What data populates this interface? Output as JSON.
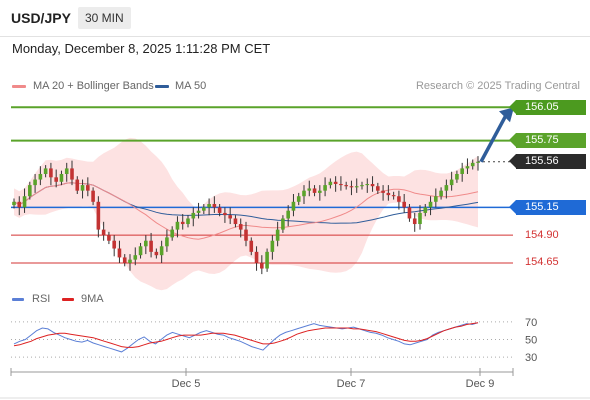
{
  "header": {
    "symbol": "USD/JPY",
    "timeframe": "30 MIN"
  },
  "datetime": "Monday, December 8, 2025 1:11:28 PM CET",
  "legend": {
    "ma20": {
      "label": "MA 20 + Bollinger Bands",
      "color": "#f08a8a"
    },
    "ma50": {
      "label": "MA 50",
      "color": "#2f5d9a"
    }
  },
  "research_note": "Research © 2025 Trading Central",
  "rsi_legend": {
    "rsi": {
      "label": "RSI",
      "color": "#5b7fd6"
    },
    "ma9": {
      "label": "9MA",
      "color": "#dd2222"
    }
  },
  "colors": {
    "green": "#5aa32a",
    "blue": "#1f6ad6",
    "red": "#d33333",
    "current_bg": "#2b2b2b",
    "target_bg": "#4c9a1f",
    "arrow": "#2f5d9a",
    "candle_up": "#5aa32a",
    "candle_down": "#c33333",
    "band_fill": "#fde2e2"
  },
  "chart_data": [
    {
      "type": "candlestick",
      "ylim": [
        154.47,
        156.16
      ],
      "x_ticks": [
        "Dec 5",
        "Dec 7",
        "Dec 9"
      ],
      "levels": [
        {
          "value": 156.05,
          "label": "156.05",
          "kind": "target"
        },
        {
          "value": 155.75,
          "label": "155.75",
          "kind": "resistance"
        },
        {
          "value": 155.56,
          "label": "155.56",
          "kind": "current"
        },
        {
          "value": 155.15,
          "label": "155.15",
          "kind": "pivot"
        },
        {
          "value": 154.9,
          "label": "154.90",
          "kind": "support"
        },
        {
          "value": 154.65,
          "label": "154.65",
          "kind": "support"
        }
      ],
      "closes": [
        155.2,
        155.15,
        155.25,
        155.35,
        155.4,
        155.45,
        155.5,
        155.42,
        155.38,
        155.45,
        155.5,
        155.4,
        155.3,
        155.35,
        155.3,
        155.2,
        154.95,
        154.9,
        154.85,
        154.78,
        154.7,
        154.65,
        154.68,
        154.72,
        154.8,
        154.85,
        154.75,
        154.72,
        154.8,
        154.88,
        154.95,
        155.02,
        155.0,
        155.05,
        155.1,
        155.12,
        155.15,
        155.18,
        155.15,
        155.1,
        155.08,
        155.05,
        155.0,
        154.95,
        154.85,
        154.75,
        154.65,
        154.6,
        154.75,
        154.85,
        154.95,
        155.05,
        155.12,
        155.2,
        155.25,
        155.3,
        155.32,
        155.28,
        155.3,
        155.35,
        155.38,
        155.36,
        155.35,
        155.34,
        155.33,
        155.34,
        155.35,
        155.36,
        155.34,
        155.3,
        155.28,
        155.26,
        155.25,
        155.2,
        155.15,
        155.05,
        155.0,
        155.1,
        155.15,
        155.2,
        155.25,
        155.3,
        155.35,
        155.4,
        155.45,
        155.5,
        155.52,
        155.55,
        155.56
      ]
    },
    {
      "type": "line",
      "title": "RSI",
      "y_ticks": [
        70,
        50,
        30
      ],
      "ylim": [
        20,
        80
      ],
      "series": [
        {
          "name": "RSI",
          "values": [
            45,
            48,
            50,
            55,
            60,
            63,
            62,
            58,
            55,
            52,
            50,
            48,
            47,
            49,
            46,
            44,
            42,
            40,
            38,
            36,
            40,
            45,
            50,
            53,
            48,
            45,
            50,
            55,
            58,
            56,
            54,
            52,
            55,
            58,
            60,
            58,
            56,
            55,
            52,
            50,
            48,
            45,
            42,
            40,
            38,
            44,
            50,
            55,
            58,
            60,
            62,
            64,
            66,
            68,
            66,
            65,
            64,
            63,
            62,
            63,
            64,
            62,
            60,
            58,
            57,
            55,
            52,
            50,
            48,
            45,
            44,
            46,
            48,
            50,
            55,
            58,
            60,
            62,
            64,
            66,
            68,
            67,
            69
          ]
        },
        {
          "name": "9MA",
          "values": [
            43,
            44,
            46,
            48,
            51,
            53,
            55,
            56,
            57,
            57,
            56,
            55,
            54,
            53,
            52,
            50,
            48,
            46,
            44,
            42,
            41,
            41,
            42,
            44,
            46,
            47,
            48,
            50,
            52,
            54,
            55,
            55,
            55,
            55,
            56,
            57,
            57,
            57,
            56,
            55,
            53,
            51,
            49,
            47,
            45,
            45,
            46,
            48,
            50,
            53,
            56,
            58,
            60,
            61,
            62,
            63,
            63,
            63,
            63,
            63,
            62,
            62,
            61,
            60,
            59,
            57,
            55,
            53,
            51,
            49,
            48,
            48,
            49,
            51,
            54,
            57,
            60,
            62,
            64,
            65,
            67,
            68,
            69
          ]
        }
      ]
    }
  ]
}
